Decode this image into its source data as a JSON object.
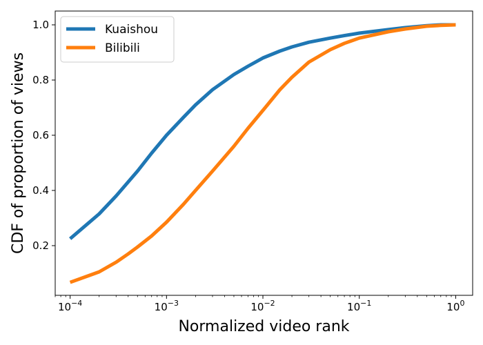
{
  "chart_data": {
    "type": "line",
    "xlabel": "Normalized video rank",
    "ylabel": "CDF of proportion of views",
    "xscale": "log",
    "xlim": [
      7e-05,
      1.5
    ],
    "ylim": [
      0.02,
      1.05
    ],
    "grid": false,
    "legend_position": "top-left",
    "x_ticks": [
      {
        "value": 0.0001,
        "base": "10",
        "exp": "−4"
      },
      {
        "value": 0.001,
        "base": "10",
        "exp": "−3"
      },
      {
        "value": 0.01,
        "base": "10",
        "exp": "−2"
      },
      {
        "value": 0.1,
        "base": "10",
        "exp": "−1"
      },
      {
        "value": 1,
        "base": "10",
        "exp": "0"
      }
    ],
    "y_ticks": [
      {
        "value": 0.2,
        "label": "0.2"
      },
      {
        "value": 0.4,
        "label": "0.4"
      },
      {
        "value": 0.6,
        "label": "0.6"
      },
      {
        "value": 0.8,
        "label": "0.8"
      },
      {
        "value": 1.0,
        "label": "1.0"
      }
    ],
    "series": [
      {
        "name": "Kuaishou",
        "color": "#1f77b4",
        "points": [
          [
            0.0001,
            0.225
          ],
          [
            0.0002,
            0.315
          ],
          [
            0.0003,
            0.38
          ],
          [
            0.0005,
            0.47
          ],
          [
            0.0007,
            0.535
          ],
          [
            0.001,
            0.6
          ],
          [
            0.0015,
            0.665
          ],
          [
            0.002,
            0.71
          ],
          [
            0.003,
            0.765
          ],
          [
            0.005,
            0.82
          ],
          [
            0.007,
            0.85
          ],
          [
            0.01,
            0.88
          ],
          [
            0.015,
            0.905
          ],
          [
            0.02,
            0.92
          ],
          [
            0.03,
            0.937
          ],
          [
            0.05,
            0.952
          ],
          [
            0.07,
            0.961
          ],
          [
            0.1,
            0.97
          ],
          [
            0.2,
            0.983
          ],
          [
            0.3,
            0.99
          ],
          [
            0.5,
            0.997
          ],
          [
            0.7,
            1.0
          ],
          [
            1.0,
            1.0
          ]
        ]
      },
      {
        "name": "Bilibili",
        "color": "#ff7f0e",
        "points": [
          [
            0.0001,
            0.067
          ],
          [
            0.0002,
            0.105
          ],
          [
            0.0003,
            0.14
          ],
          [
            0.0004,
            0.17
          ],
          [
            0.0005,
            0.195
          ],
          [
            0.0007,
            0.235
          ],
          [
            0.001,
            0.285
          ],
          [
            0.0015,
            0.35
          ],
          [
            0.002,
            0.4
          ],
          [
            0.003,
            0.47
          ],
          [
            0.005,
            0.56
          ],
          [
            0.007,
            0.625
          ],
          [
            0.01,
            0.69
          ],
          [
            0.015,
            0.765
          ],
          [
            0.02,
            0.81
          ],
          [
            0.03,
            0.865
          ],
          [
            0.05,
            0.91
          ],
          [
            0.07,
            0.933
          ],
          [
            0.1,
            0.952
          ],
          [
            0.2,
            0.975
          ],
          [
            0.3,
            0.985
          ],
          [
            0.5,
            0.995
          ],
          [
            0.7,
            0.998
          ],
          [
            1.0,
            1.0
          ]
        ]
      }
    ]
  }
}
